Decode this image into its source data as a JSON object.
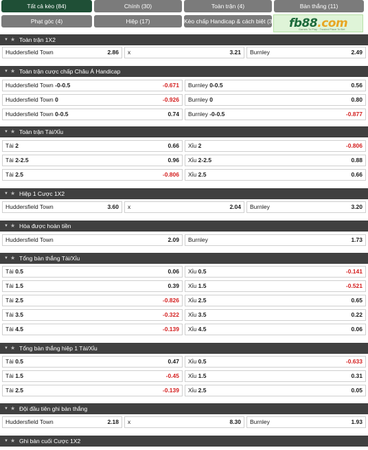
{
  "tabs": [
    {
      "label": "Tất cả kèo (84)",
      "active": true
    },
    {
      "label": "Chính (30)",
      "active": false
    },
    {
      "label": "Toàn trận (4)",
      "active": false
    },
    {
      "label": "Bàn thắng (11)",
      "active": false
    },
    {
      "label": "Phạt góc (4)",
      "active": false
    },
    {
      "label": "Hiệp (17)",
      "active": false
    },
    {
      "label": "Kèo chấp Handicap & cách biệt (3)",
      "active": false
    }
  ],
  "logo": {
    "brand": "fb88",
    "domain": ".com",
    "tagline": "Games To Play · Trusted Place To Bet"
  },
  "icons": {
    "collapse": "caret-down-icon",
    "favorite": "star-icon"
  },
  "colors": {
    "header_bg": "#404040",
    "active_tab": "#1f4f36",
    "tab": "#7b7b7b",
    "negative": "#d41f1f"
  },
  "sections": [
    {
      "title": "Toàn trận 1X2",
      "layout": "three",
      "rows": [
        [
          {
            "name": "Huddersfield Town",
            "line": "",
            "odds": "2.86"
          },
          {
            "name": "x",
            "line": "",
            "odds": "3.21"
          },
          {
            "name": "Burnley",
            "line": "",
            "odds": "2.49"
          }
        ]
      ]
    },
    {
      "title": "Toàn trận cược chấp Châu Á Handicap",
      "layout": "two",
      "rows": [
        [
          {
            "name": "Huddersfield Town",
            "line": "-0-0.5",
            "odds": "-0.671"
          },
          {
            "name": "Burnley",
            "line": "0-0.5",
            "odds": "0.56"
          }
        ],
        [
          {
            "name": "Huddersfield Town",
            "line": "0",
            "odds": "-0.926"
          },
          {
            "name": "Burnley",
            "line": "0",
            "odds": "0.80"
          }
        ],
        [
          {
            "name": "Huddersfield Town",
            "line": "0-0.5",
            "odds": "0.74"
          },
          {
            "name": "Burnley",
            "line": "-0-0.5",
            "odds": "-0.877"
          }
        ]
      ]
    },
    {
      "title": "Toàn trận Tài/Xỉu",
      "layout": "two",
      "rows": [
        [
          {
            "name": "Tài",
            "line": "2",
            "odds": "0.66"
          },
          {
            "name": "Xỉu",
            "line": "2",
            "odds": "-0.806"
          }
        ],
        [
          {
            "name": "Tài",
            "line": "2-2.5",
            "odds": "0.96"
          },
          {
            "name": "Xỉu",
            "line": "2-2.5",
            "odds": "0.88"
          }
        ],
        [
          {
            "name": "Tài",
            "line": "2.5",
            "odds": "-0.806"
          },
          {
            "name": "Xỉu",
            "line": "2.5",
            "odds": "0.66"
          }
        ]
      ]
    },
    {
      "title": "Hiệp 1 Cược 1X2",
      "layout": "three",
      "rows": [
        [
          {
            "name": "Huddersfield Town",
            "line": "",
            "odds": "3.60"
          },
          {
            "name": "x",
            "line": "",
            "odds": "2.04"
          },
          {
            "name": "Burnley",
            "line": "",
            "odds": "3.20"
          }
        ]
      ]
    },
    {
      "title": "Hòa được hoàn tiền",
      "layout": "two",
      "rows": [
        [
          {
            "name": "Huddersfield Town",
            "line": "",
            "odds": "2.09"
          },
          {
            "name": "Burnley",
            "line": "",
            "odds": "1.73"
          }
        ]
      ]
    },
    {
      "title": "Tổng bàn thắng Tài/Xỉu",
      "layout": "two",
      "rows": [
        [
          {
            "name": "Tài",
            "line": "0.5",
            "odds": "0.06"
          },
          {
            "name": "Xỉu",
            "line": "0.5",
            "odds": "-0.141"
          }
        ],
        [
          {
            "name": "Tài",
            "line": "1.5",
            "odds": "0.39"
          },
          {
            "name": "Xỉu",
            "line": "1.5",
            "odds": "-0.521"
          }
        ],
        [
          {
            "name": "Tài",
            "line": "2.5",
            "odds": "-0.826"
          },
          {
            "name": "Xỉu",
            "line": "2.5",
            "odds": "0.65"
          }
        ],
        [
          {
            "name": "Tài",
            "line": "3.5",
            "odds": "-0.322"
          },
          {
            "name": "Xỉu",
            "line": "3.5",
            "odds": "0.22"
          }
        ],
        [
          {
            "name": "Tài",
            "line": "4.5",
            "odds": "-0.139"
          },
          {
            "name": "Xỉu",
            "line": "4.5",
            "odds": "0.06"
          }
        ]
      ]
    },
    {
      "title": "Tổng bàn thắng hiệp 1 Tài/Xỉu",
      "layout": "two",
      "rows": [
        [
          {
            "name": "Tài",
            "line": "0.5",
            "odds": "0.47"
          },
          {
            "name": "Xỉu",
            "line": "0.5",
            "odds": "-0.633"
          }
        ],
        [
          {
            "name": "Tài",
            "line": "1.5",
            "odds": "-0.45"
          },
          {
            "name": "Xỉu",
            "line": "1.5",
            "odds": "0.31"
          }
        ],
        [
          {
            "name": "Tài",
            "line": "2.5",
            "odds": "-0.139"
          },
          {
            "name": "Xỉu",
            "line": "2.5",
            "odds": "0.05"
          }
        ]
      ]
    },
    {
      "title": "Đội đầu tiên ghi bàn thắng",
      "layout": "three",
      "rows": [
        [
          {
            "name": "Huddersfield Town",
            "line": "",
            "odds": "2.18"
          },
          {
            "name": "x",
            "line": "",
            "odds": "8.30"
          },
          {
            "name": "Burnley",
            "line": "",
            "odds": "1.93"
          }
        ]
      ]
    },
    {
      "title": "Ghi bàn cuối Cược 1X2",
      "layout": "three",
      "rows": []
    }
  ]
}
